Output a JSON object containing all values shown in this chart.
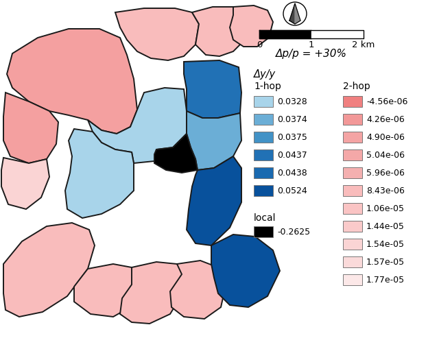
{
  "delta_p_label": "Δp/p = +30%",
  "delta_y_label": "Δy/y",
  "hop1_label": "1-hop",
  "hop2_label": "2-hop",
  "local_label": "local",
  "hop1_values": [
    "0.0328",
    "0.0374",
    "0.0375",
    "0.0437",
    "0.0438",
    "0.0524"
  ],
  "hop2_values": [
    "-4.56e-06",
    "4.26e-06",
    "4.90e-06",
    "5.04e-06",
    "5.96e-06",
    "8.43e-06",
    "1.06e-05",
    "1.44e-05",
    "1.54e-05",
    "1.57e-05",
    "1.77e-05"
  ],
  "local_value": "-0.2625",
  "hop1_colors": [
    "#a8d4ea",
    "#6baed6",
    "#4292c6",
    "#2171b5",
    "#1a6ab0",
    "#08519c"
  ],
  "hop2_colors": [
    "#f08080",
    "#f29898",
    "#f4a4a4",
    "#f4a8a8",
    "#f4b0b0",
    "#f9bcbc",
    "#fac4c4",
    "#facaca",
    "#fad4d4",
    "#fadada",
    "#fce8e8"
  ],
  "local_color": "#000000",
  "edge_color": "#1a1a1a",
  "bg_color": "#ffffff",
  "pink_dark": "#f08080",
  "pink_med": "#f4a0a0",
  "pink_light": "#f9bcbc",
  "pink_vlight": "#fad4d4",
  "blue_light": "#a8d4ea",
  "blue_med": "#6baed6",
  "blue_dark": "#2171b5",
  "blue_vdark": "#08519c",
  "black_col": "#000000",
  "map_regions": [
    {
      "name": "top_center",
      "color": "#f9bcbc"
    },
    {
      "name": "top_right1",
      "color": "#f9bcbc"
    },
    {
      "name": "top_right2",
      "color": "#f9bcbc"
    },
    {
      "name": "top_left_large",
      "color": "#f4a0a0"
    },
    {
      "name": "left_upper",
      "color": "#f4a0a0"
    },
    {
      "name": "left_lower",
      "color": "#fad4d4"
    },
    {
      "name": "bottom_left",
      "color": "#f9bcbc"
    },
    {
      "name": "bottom_ctr_left",
      "color": "#f9bcbc"
    },
    {
      "name": "bottom_ctr_mid",
      "color": "#f9bcbc"
    },
    {
      "name": "bottom_ctr_right",
      "color": "#f9bcbc"
    },
    {
      "name": "blue_upper_left",
      "color": "#a8d4ea"
    },
    {
      "name": "blue_center",
      "color": "#a8d4ea"
    },
    {
      "name": "blue_right_upper",
      "color": "#2171b5"
    },
    {
      "name": "blue_right_mid",
      "color": "#6baed6"
    },
    {
      "name": "blue_right_lower",
      "color": "#08519c"
    },
    {
      "name": "local_region",
      "color": "#000000"
    }
  ]
}
